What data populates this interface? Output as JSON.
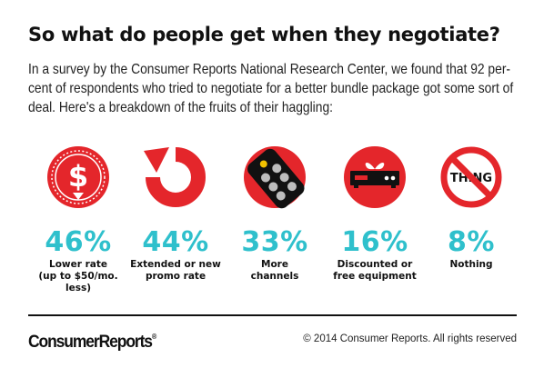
{
  "title": "So what do people get when they negotiate?",
  "intro": "In a survey by the Consumer Reports National Research Center, we found that 92 per-cent of respondents who tried to negotiate for a better bundle package got some sort of deal. Here's a breakdown of the fruits of their haggling:",
  "stats": [
    {
      "icon": "dollar-down-icon",
      "percent": "46%",
      "label_line1": "Lower rate",
      "label_line2": "(up to $50/mo. less)"
    },
    {
      "icon": "refresh-arrow-icon",
      "percent": "44%",
      "label_line1": "Extended or new",
      "label_line2": "promo rate"
    },
    {
      "icon": "remote-control-icon",
      "percent": "33%",
      "label_line1": "More",
      "label_line2": "channels"
    },
    {
      "icon": "gift-box-icon",
      "percent": "16%",
      "label_line1": "Discounted or",
      "label_line2": "free equipment"
    },
    {
      "icon": "no-thing-icon",
      "percent": "8%",
      "label_line1": "Nothing",
      "label_line2": ""
    }
  ],
  "no_thing_text": "THING",
  "footer": {
    "logo": "ConsumerReports",
    "logo_mark": "®",
    "copyright": "© 2014 Consumer Reports. All rights reserved"
  },
  "colors": {
    "red": "#e4262b",
    "teal": "#2fc0cc",
    "black": "#111111"
  }
}
